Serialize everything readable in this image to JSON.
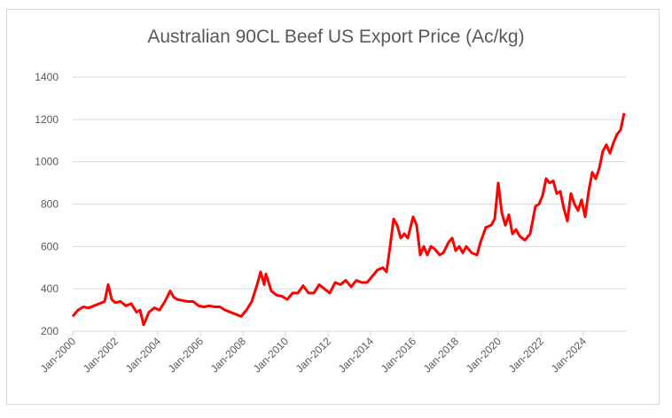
{
  "chart_data": {
    "type": "line",
    "title": "Australian 90CL Beef US Export Price (Ac/kg)",
    "xlabel": "",
    "ylabel": "",
    "ylim": [
      200,
      1400
    ],
    "yticks": [
      200,
      400,
      600,
      800,
      1000,
      1200,
      1400
    ],
    "xlim": [
      "2000-01",
      "2026-01"
    ],
    "xticks": [
      "Jan-2000",
      "Jan-2002",
      "Jan-2004",
      "Jan-2006",
      "Jan-2008",
      "Jan-2010",
      "Jan-2012",
      "Jan-2014",
      "Jan-2016",
      "Jan-2018",
      "Jan-2020",
      "Jan-2022",
      "Jan-2024"
    ],
    "grid": "horizontal",
    "legend": "none",
    "color": "#ff0000",
    "series": [
      {
        "x": [
          "2000-01",
          "2000-04",
          "2000-07",
          "2000-10",
          "2001-01",
          "2001-04",
          "2001-07",
          "2001-09",
          "2001-11",
          "2002-01",
          "2002-04",
          "2002-07",
          "2002-10",
          "2003-01",
          "2003-03",
          "2003-05",
          "2003-08",
          "2003-11",
          "2004-02",
          "2004-05",
          "2004-08",
          "2004-10",
          "2004-12",
          "2005-03",
          "2005-06",
          "2005-09",
          "2005-12",
          "2006-03",
          "2006-06",
          "2006-09",
          "2006-12",
          "2007-03",
          "2007-06",
          "2007-09",
          "2007-12",
          "2008-03",
          "2008-06",
          "2008-09",
          "2008-11",
          "2009-01",
          "2009-02",
          "2009-05",
          "2009-08",
          "2009-11",
          "2010-02",
          "2010-05",
          "2010-08",
          "2010-11",
          "2011-02",
          "2011-05",
          "2011-08",
          "2011-11",
          "2012-02",
          "2012-05",
          "2012-08",
          "2012-11",
          "2013-02",
          "2013-05",
          "2013-08",
          "2013-11",
          "2014-02",
          "2014-05",
          "2014-08",
          "2014-10",
          "2014-12",
          "2015-02",
          "2015-04",
          "2015-06",
          "2015-08",
          "2015-10",
          "2016-01",
          "2016-03",
          "2016-05",
          "2016-07",
          "2016-09",
          "2016-11",
          "2017-01",
          "2017-04",
          "2017-06",
          "2017-09",
          "2017-11",
          "2018-01",
          "2018-03",
          "2018-05",
          "2018-07",
          "2018-10",
          "2019-01",
          "2019-03",
          "2019-06",
          "2019-09",
          "2019-11",
          "2020-01",
          "2020-03",
          "2020-05",
          "2020-07",
          "2020-09",
          "2020-11",
          "2021-01",
          "2021-04",
          "2021-07",
          "2021-10",
          "2021-12",
          "2022-02",
          "2022-04",
          "2022-06",
          "2022-08",
          "2022-10",
          "2022-12",
          "2023-02",
          "2023-04",
          "2023-06",
          "2023-08",
          "2023-10",
          "2023-12",
          "2024-02",
          "2024-04",
          "2024-06",
          "2024-08",
          "2024-10",
          "2024-12",
          "2025-02",
          "2025-04",
          "2025-06",
          "2025-08",
          "2025-10",
          "2025-12"
        ],
        "values": [
          270,
          300,
          315,
          310,
          320,
          330,
          340,
          420,
          350,
          335,
          340,
          320,
          330,
          290,
          300,
          230,
          290,
          310,
          300,
          340,
          390,
          360,
          350,
          345,
          340,
          340,
          320,
          315,
          320,
          315,
          315,
          300,
          290,
          280,
          270,
          300,
          340,
          420,
          480,
          420,
          470,
          390,
          370,
          365,
          350,
          380,
          380,
          415,
          380,
          380,
          420,
          400,
          380,
          430,
          420,
          440,
          410,
          440,
          430,
          430,
          460,
          490,
          500,
          480,
          600,
          730,
          700,
          640,
          660,
          640,
          740,
          700,
          560,
          600,
          560,
          600,
          590,
          560,
          570,
          620,
          640,
          580,
          600,
          570,
          600,
          570,
          560,
          620,
          690,
          700,
          730,
          900,
          760,
          700,
          750,
          660,
          680,
          650,
          630,
          660,
          790,
          800,
          840,
          920,
          900,
          910,
          850,
          860,
          780,
          720,
          850,
          800,
          770,
          820,
          740,
          860,
          950,
          920,
          970,
          1050,
          1080,
          1040,
          1090,
          1130,
          1150,
          1230
        ]
      }
    ]
  }
}
